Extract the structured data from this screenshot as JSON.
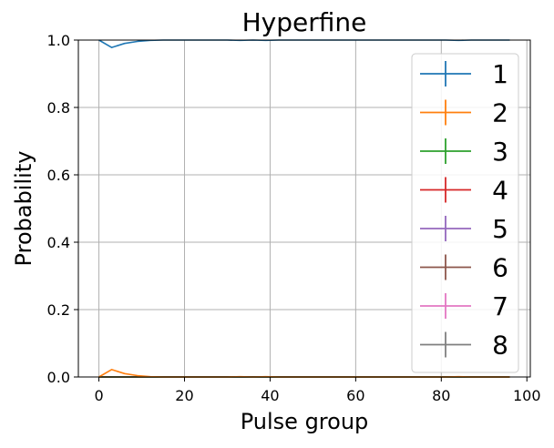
{
  "chart_data": {
    "type": "line",
    "title": "Hyperfine",
    "xlabel": "Pulse group",
    "ylabel": "Probability",
    "xlim": [
      -4.8,
      100.8
    ],
    "ylim": [
      0.0,
      1.0
    ],
    "xticks": [
      0,
      20,
      40,
      60,
      80,
      100
    ],
    "yticks": [
      0.0,
      0.2,
      0.4,
      0.6,
      0.8,
      1.0
    ],
    "xtick_labels": [
      "0",
      "20",
      "40",
      "60",
      "80",
      "100"
    ],
    "ytick_labels": [
      "0.0",
      "0.2",
      "0.4",
      "0.6",
      "0.8",
      "1.0"
    ],
    "grid": true,
    "legend_position": "right",
    "x": [
      0,
      3,
      6,
      9,
      12,
      15,
      18,
      21,
      24,
      27,
      30,
      33,
      36,
      39,
      42,
      45,
      48,
      51,
      54,
      57,
      60,
      63,
      66,
      69,
      72,
      75,
      78,
      81,
      84,
      87,
      90,
      93,
      96
    ],
    "series": [
      {
        "name": "1",
        "color": "#1f77b4",
        "values": [
          1.0,
          0.978,
          0.99,
          0.996,
          0.999,
          1.0,
          1.0,
          1.0,
          1.0,
          1.0,
          1.0,
          0.999,
          1.0,
          0.999,
          1.0,
          1.0,
          1.0,
          1.0,
          1.0,
          1.0,
          1.0,
          1.0,
          1.0,
          1.0,
          1.0,
          1.0,
          1.0,
          1.0,
          0.999,
          1.0,
          1.0,
          1.0,
          1.0
        ]
      },
      {
        "name": "2",
        "color": "#ff7f0e",
        "values": [
          0.0,
          0.022,
          0.01,
          0.004,
          0.001,
          0.0,
          0.0,
          0.0,
          0.0,
          0.0,
          0.0,
          0.001,
          0.0,
          0.001,
          0.0,
          0.0,
          0.0,
          0.0,
          0.0,
          0.0,
          0.0,
          0.0,
          0.0,
          0.0,
          0.0,
          0.0,
          0.0,
          0.0,
          0.001,
          0.0,
          0.0,
          0.0,
          0.0
        ]
      },
      {
        "name": "3",
        "color": "#2ca02c",
        "values": [
          0,
          0,
          0,
          0,
          0,
          0,
          0,
          0,
          0,
          0,
          0,
          0,
          0,
          0,
          0,
          0,
          0,
          0,
          0,
          0,
          0,
          0,
          0,
          0,
          0,
          0,
          0,
          0,
          0,
          0,
          0,
          0,
          0
        ]
      },
      {
        "name": "4",
        "color": "#d62728",
        "values": [
          0,
          0,
          0,
          0,
          0,
          0,
          0,
          0,
          0,
          0,
          0,
          0,
          0,
          0,
          0,
          0,
          0,
          0,
          0,
          0,
          0,
          0,
          0,
          0,
          0,
          0,
          0,
          0,
          0,
          0,
          0,
          0,
          0
        ]
      },
      {
        "name": "5",
        "color": "#9467bd",
        "values": [
          0,
          0,
          0,
          0,
          0,
          0,
          0,
          0,
          0,
          0,
          0,
          0,
          0,
          0,
          0,
          0,
          0,
          0,
          0,
          0,
          0,
          0,
          0,
          0,
          0,
          0,
          0,
          0,
          0,
          0,
          0,
          0,
          0
        ]
      },
      {
        "name": "6",
        "color": "#8c564b",
        "values": [
          0,
          0,
          0,
          0,
          0,
          0,
          0,
          0,
          0,
          0,
          0,
          0,
          0,
          0,
          0,
          0,
          0,
          0,
          0,
          0,
          0,
          0,
          0,
          0,
          0,
          0,
          0,
          0,
          0,
          0,
          0,
          0,
          0
        ]
      },
      {
        "name": "7",
        "color": "#e377c2",
        "values": [
          0,
          0,
          0,
          0,
          0,
          0,
          0,
          0,
          0,
          0,
          0,
          0,
          0,
          0,
          0,
          0,
          0,
          0,
          0,
          0,
          0,
          0,
          0,
          0,
          0,
          0,
          0,
          0,
          0,
          0,
          0,
          0,
          0
        ]
      },
      {
        "name": "8",
        "color": "#7f7f7f",
        "values": [
          0,
          0,
          0,
          0,
          0,
          0,
          0,
          0,
          0,
          0,
          0,
          0,
          0,
          0,
          0,
          0,
          0,
          0,
          0,
          0,
          0,
          0,
          0,
          0,
          0,
          0,
          0,
          0,
          0,
          0,
          0,
          0,
          0
        ]
      }
    ]
  }
}
